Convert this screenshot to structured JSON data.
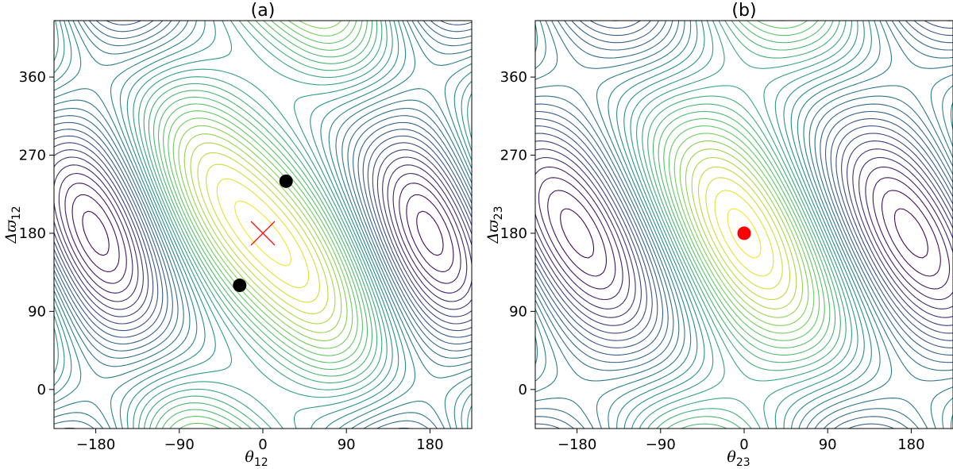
{
  "chart_data": [
    {
      "type": "contour",
      "title": "(a)",
      "xlabel": "θ",
      "xlabel_sub": "12",
      "ylabel": "Δϖ",
      "ylabel_sub": "12",
      "xlim": [
        -225,
        225
      ],
      "ylim": [
        -45,
        425
      ],
      "xticks": [
        -180,
        -90,
        0,
        90,
        180
      ],
      "xtick_labels": [
        "−180",
        "−90",
        "0",
        "90",
        "180"
      ],
      "yticks": [
        0,
        90,
        180,
        270,
        360
      ],
      "ytick_labels": [
        "0",
        "90",
        "180",
        "270",
        "360"
      ],
      "colormap": [
        "#440154",
        "#3b528b",
        "#21918c",
        "#5ec962",
        "#fde725"
      ],
      "markers": [
        {
          "kind": "circle",
          "color": "#000000",
          "x": 25,
          "y": 240
        },
        {
          "kind": "circle",
          "color": "#000000",
          "x": -25,
          "y": 120
        },
        {
          "kind": "cross",
          "color": "#ff0000",
          "x": 0,
          "y": 180
        }
      ],
      "grid": false
    },
    {
      "type": "contour",
      "title": "(b)",
      "xlabel": "θ",
      "xlabel_sub": "23",
      "ylabel": "Δϖ",
      "ylabel_sub": "23",
      "xlim": [
        -225,
        225
      ],
      "ylim": [
        -45,
        425
      ],
      "xticks": [
        -180,
        -90,
        0,
        90,
        180
      ],
      "xtick_labels": [
        "−180",
        "−90",
        "0",
        "90",
        "180"
      ],
      "yticks": [
        0,
        90,
        180,
        270,
        360
      ],
      "ytick_labels": [
        "0",
        "90",
        "180",
        "270",
        "360"
      ],
      "colormap": [
        "#440154",
        "#3b528b",
        "#21918c",
        "#5ec962",
        "#fde725"
      ],
      "markers": [
        {
          "kind": "circle",
          "color": "#ff0000",
          "x": 0,
          "y": 180
        }
      ],
      "grid": false
    }
  ]
}
